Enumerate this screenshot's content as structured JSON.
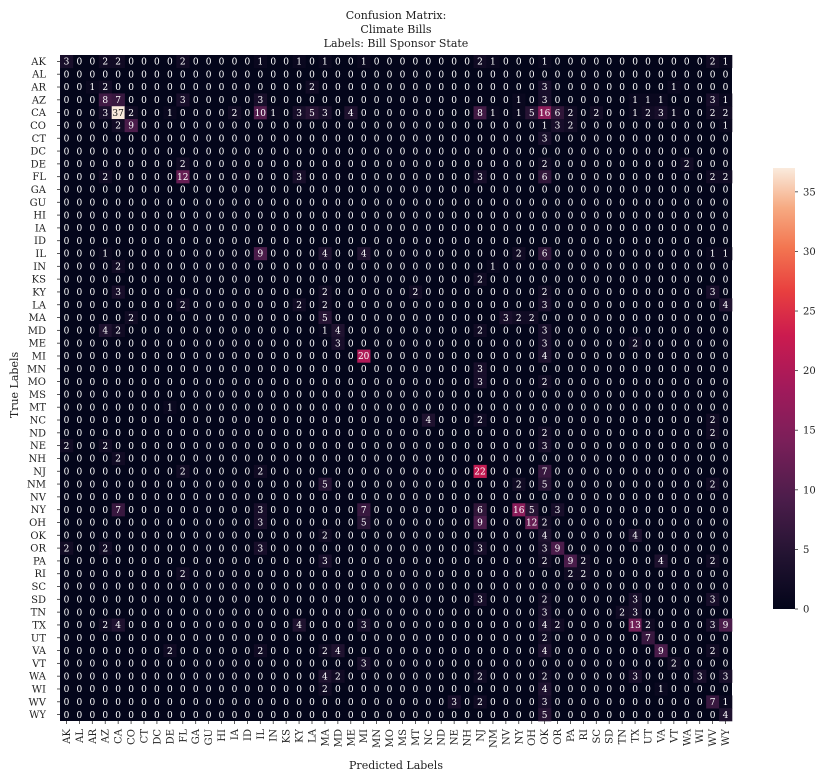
{
  "chart_data": {
    "type": "heatmap",
    "title": [
      "Confusion Matrix:",
      "Climate Bills",
      "Labels: Bill Sponsor State"
    ],
    "xlabel": "Predicted Labels",
    "ylabel": "True Labels",
    "labels": [
      "AK",
      "AL",
      "AR",
      "AZ",
      "CA",
      "CO",
      "CT",
      "DC",
      "DE",
      "FL",
      "GA",
      "GU",
      "HI",
      "IA",
      "ID",
      "IL",
      "IN",
      "KS",
      "KY",
      "LA",
      "MA",
      "MD",
      "ME",
      "MI",
      "MN",
      "MO",
      "MS",
      "MT",
      "NC",
      "ND",
      "NE",
      "NH",
      "NJ",
      "NM",
      "NV",
      "NY",
      "OH",
      "OK",
      "OR",
      "PA",
      "RI",
      "SC",
      "SD",
      "TN",
      "TX",
      "UT",
      "VA",
      "VT",
      "WA",
      "WI",
      "WV",
      "WY"
    ],
    "colorbar": {
      "min": 0,
      "max": 37,
      "ticks": [
        0,
        5,
        10,
        15,
        20,
        25,
        30,
        35
      ]
    },
    "cells": [
      [
        0,
        0,
        3
      ],
      [
        0,
        3,
        2
      ],
      [
        0,
        4,
        2
      ],
      [
        0,
        9,
        2
      ],
      [
        0,
        15,
        1
      ],
      [
        0,
        18,
        1
      ],
      [
        0,
        20,
        1
      ],
      [
        0,
        23,
        1
      ],
      [
        0,
        32,
        2
      ],
      [
        0,
        33,
        1
      ],
      [
        0,
        37,
        1
      ],
      [
        0,
        50,
        2
      ],
      [
        0,
        51,
        1
      ],
      [
        2,
        2,
        1
      ],
      [
        2,
        3,
        2
      ],
      [
        2,
        19,
        2
      ],
      [
        2,
        37,
        3
      ],
      [
        2,
        47,
        1
      ],
      [
        3,
        3,
        8
      ],
      [
        3,
        4,
        7
      ],
      [
        3,
        9,
        3
      ],
      [
        3,
        15,
        3
      ],
      [
        3,
        35,
        1
      ],
      [
        3,
        37,
        3
      ],
      [
        3,
        44,
        1
      ],
      [
        3,
        45,
        1
      ],
      [
        3,
        46,
        1
      ],
      [
        3,
        50,
        3
      ],
      [
        3,
        51,
        1
      ],
      [
        4,
        3,
        3
      ],
      [
        4,
        4,
        37
      ],
      [
        4,
        5,
        2
      ],
      [
        4,
        8,
        1
      ],
      [
        4,
        13,
        2
      ],
      [
        4,
        15,
        10
      ],
      [
        4,
        16,
        1
      ],
      [
        4,
        18,
        3
      ],
      [
        4,
        19,
        5
      ],
      [
        4,
        20,
        3
      ],
      [
        4,
        22,
        4
      ],
      [
        4,
        32,
        8
      ],
      [
        4,
        33,
        1
      ],
      [
        4,
        35,
        1
      ],
      [
        4,
        36,
        5
      ],
      [
        4,
        37,
        16
      ],
      [
        4,
        38,
        6
      ],
      [
        4,
        39,
        2
      ],
      [
        4,
        41,
        2
      ],
      [
        4,
        44,
        1
      ],
      [
        4,
        45,
        2
      ],
      [
        4,
        46,
        3
      ],
      [
        4,
        47,
        1
      ],
      [
        4,
        50,
        2
      ],
      [
        4,
        51,
        2
      ],
      [
        5,
        4,
        2
      ],
      [
        5,
        5,
        9
      ],
      [
        5,
        37,
        1
      ],
      [
        5,
        38,
        3
      ],
      [
        5,
        39,
        2
      ],
      [
        5,
        51,
        1
      ],
      [
        6,
        37,
        3
      ],
      [
        8,
        9,
        2
      ],
      [
        8,
        37,
        2
      ],
      [
        8,
        48,
        2
      ],
      [
        9,
        3,
        2
      ],
      [
        9,
        9,
        12
      ],
      [
        9,
        18,
        3
      ],
      [
        9,
        32,
        3
      ],
      [
        9,
        37,
        6
      ],
      [
        9,
        50,
        2
      ],
      [
        9,
        51,
        2
      ],
      [
        15,
        3,
        1
      ],
      [
        15,
        15,
        9
      ],
      [
        15,
        20,
        4
      ],
      [
        15,
        23,
        4
      ],
      [
        15,
        35,
        2
      ],
      [
        15,
        37,
        6
      ],
      [
        15,
        50,
        1
      ],
      [
        15,
        51,
        1
      ],
      [
        16,
        4,
        2
      ],
      [
        16,
        33,
        1
      ],
      [
        17,
        32,
        2
      ],
      [
        18,
        4,
        3
      ],
      [
        18,
        20,
        2
      ],
      [
        18,
        27,
        2
      ],
      [
        18,
        37,
        2
      ],
      [
        18,
        50,
        3
      ],
      [
        19,
        9,
        2
      ],
      [
        19,
        18,
        2
      ],
      [
        19,
        20,
        2
      ],
      [
        19,
        37,
        3
      ],
      [
        19,
        51,
        4
      ],
      [
        20,
        5,
        2
      ],
      [
        20,
        20,
        5
      ],
      [
        20,
        34,
        3
      ],
      [
        20,
        35,
        2
      ],
      [
        20,
        36,
        2
      ],
      [
        21,
        3,
        4
      ],
      [
        21,
        4,
        2
      ],
      [
        21,
        20,
        1
      ],
      [
        21,
        21,
        4
      ],
      [
        21,
        32,
        2
      ],
      [
        21,
        37,
        3
      ],
      [
        22,
        21,
        3
      ],
      [
        22,
        37,
        3
      ],
      [
        22,
        44,
        2
      ],
      [
        23,
        23,
        20
      ],
      [
        23,
        37,
        4
      ],
      [
        24,
        32,
        3
      ],
      [
        25,
        32,
        3
      ],
      [
        25,
        37,
        2
      ],
      [
        27,
        8,
        1
      ],
      [
        28,
        28,
        4
      ],
      [
        28,
        32,
        2
      ],
      [
        28,
        50,
        2
      ],
      [
        29,
        37,
        2
      ],
      [
        29,
        50,
        2
      ],
      [
        30,
        0,
        2
      ],
      [
        30,
        3,
        2
      ],
      [
        30,
        37,
        3
      ],
      [
        31,
        4,
        2
      ],
      [
        32,
        9,
        2
      ],
      [
        32,
        15,
        2
      ],
      [
        32,
        32,
        22
      ],
      [
        32,
        37,
        7
      ],
      [
        33,
        20,
        5
      ],
      [
        33,
        35,
        2
      ],
      [
        33,
        37,
        5
      ],
      [
        33,
        50,
        2
      ],
      [
        35,
        4,
        7
      ],
      [
        35,
        15,
        3
      ],
      [
        35,
        23,
        7
      ],
      [
        35,
        32,
        6
      ],
      [
        35,
        35,
        16
      ],
      [
        35,
        36,
        5
      ],
      [
        35,
        38,
        3
      ],
      [
        36,
        15,
        3
      ],
      [
        36,
        23,
        5
      ],
      [
        36,
        32,
        9
      ],
      [
        36,
        36,
        12
      ],
      [
        36,
        37,
        2
      ],
      [
        37,
        20,
        2
      ],
      [
        37,
        37,
        4
      ],
      [
        37,
        44,
        4
      ],
      [
        38,
        0,
        2
      ],
      [
        38,
        3,
        2
      ],
      [
        38,
        15,
        3
      ],
      [
        38,
        32,
        3
      ],
      [
        38,
        37,
        3
      ],
      [
        38,
        38,
        9
      ],
      [
        39,
        20,
        3
      ],
      [
        39,
        37,
        2
      ],
      [
        39,
        39,
        9
      ],
      [
        39,
        40,
        2
      ],
      [
        39,
        46,
        4
      ],
      [
        39,
        50,
        2
      ],
      [
        40,
        9,
        2
      ],
      [
        40,
        39,
        2
      ],
      [
        40,
        40,
        2
      ],
      [
        42,
        32,
        3
      ],
      [
        42,
        37,
        2
      ],
      [
        42,
        44,
        3
      ],
      [
        42,
        50,
        3
      ],
      [
        43,
        37,
        3
      ],
      [
        43,
        43,
        2
      ],
      [
        43,
        44,
        3
      ],
      [
        44,
        3,
        2
      ],
      [
        44,
        4,
        4
      ],
      [
        44,
        18,
        4
      ],
      [
        44,
        23,
        3
      ],
      [
        44,
        37,
        4
      ],
      [
        44,
        38,
        2
      ],
      [
        44,
        44,
        13
      ],
      [
        44,
        45,
        2
      ],
      [
        44,
        50,
        3
      ],
      [
        44,
        51,
        9
      ],
      [
        45,
        37,
        2
      ],
      [
        45,
        45,
        7
      ],
      [
        46,
        8,
        2
      ],
      [
        46,
        15,
        2
      ],
      [
        46,
        20,
        2
      ],
      [
        46,
        21,
        4
      ],
      [
        46,
        37,
        4
      ],
      [
        46,
        46,
        9
      ],
      [
        46,
        50,
        2
      ],
      [
        47,
        23,
        3
      ],
      [
        47,
        47,
        2
      ],
      [
        48,
        20,
        4
      ],
      [
        48,
        21,
        2
      ],
      [
        48,
        32,
        2
      ],
      [
        48,
        37,
        2
      ],
      [
        48,
        44,
        3
      ],
      [
        48,
        49,
        3
      ],
      [
        48,
        51,
        3
      ],
      [
        49,
        20,
        2
      ],
      [
        49,
        37,
        4
      ],
      [
        49,
        46,
        1
      ],
      [
        50,
        30,
        3
      ],
      [
        50,
        32,
        2
      ],
      [
        50,
        37,
        3
      ],
      [
        50,
        50,
        7
      ],
      [
        50,
        51,
        1
      ],
      [
        51,
        37,
        5
      ],
      [
        51,
        51,
        4
      ]
    ]
  }
}
